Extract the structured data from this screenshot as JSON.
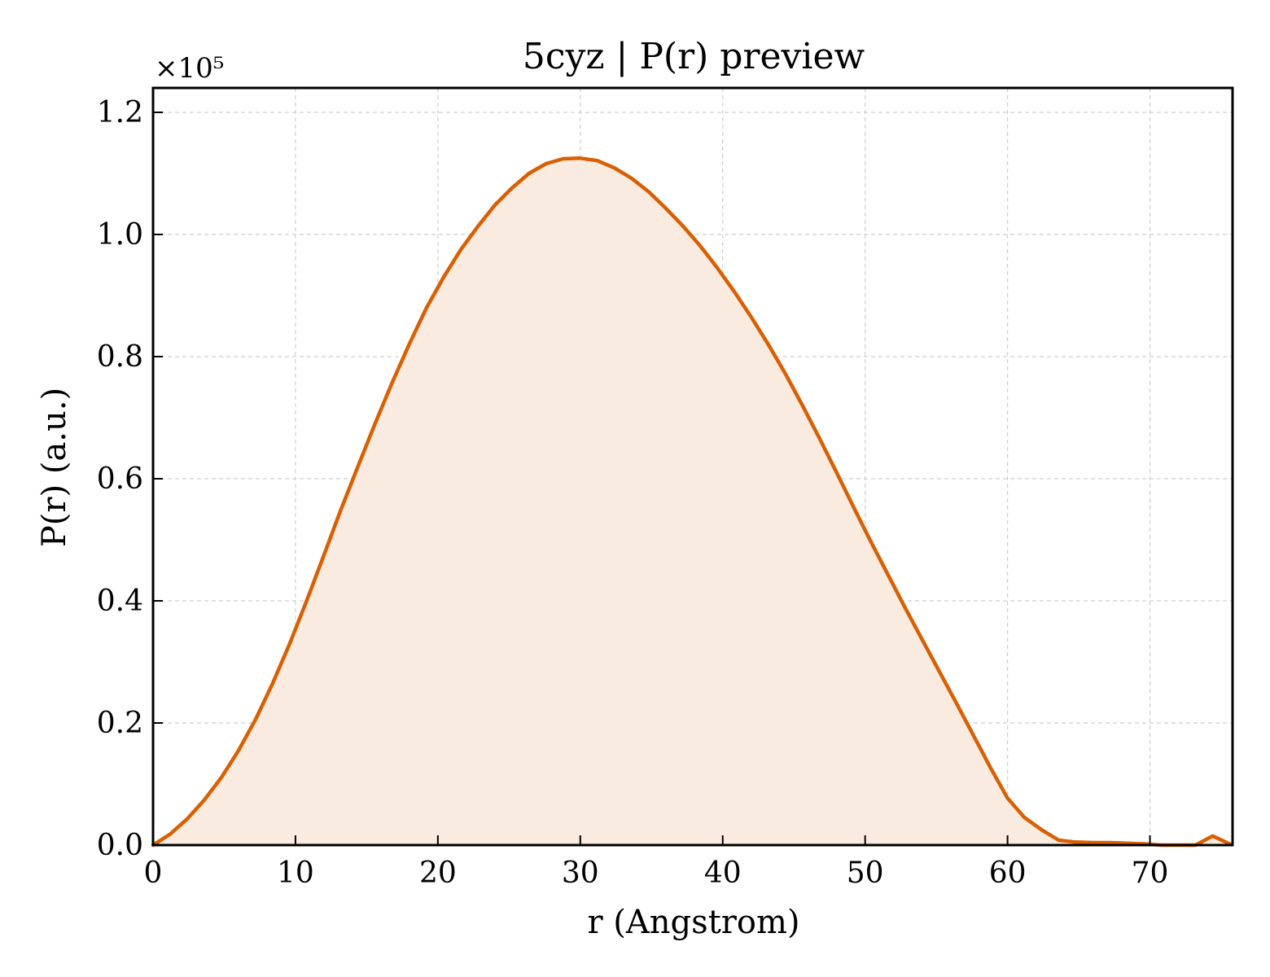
{
  "chart_data": {
    "type": "area",
    "title": "5cyz | P(r) preview",
    "xlabel": "r (Angstrom)",
    "ylabel": "P(r) (a.u.)",
    "y_multiplier_label": "×10⁵",
    "xlim": [
      0,
      75.8
    ],
    "ylim": [
      0,
      1.24
    ],
    "xticks": [
      0,
      10,
      20,
      30,
      40,
      50,
      60,
      70
    ],
    "yticks": [
      0.0,
      0.2,
      0.4,
      0.6,
      0.8,
      1.0,
      1.2
    ],
    "ytick_labels": [
      "0.0",
      "0.2",
      "0.4",
      "0.6",
      "0.8",
      "1.0",
      "1.2"
    ],
    "grid": true,
    "line_color": "#d95f02",
    "fill_color": "#f9ebdf",
    "series": [
      {
        "x": [
          0,
          1.2,
          2.4,
          3.6,
          4.8,
          6.0,
          7.2,
          8.4,
          9.6,
          10.8,
          12.0,
          13.2,
          14.4,
          15.6,
          16.8,
          18.0,
          19.2,
          20.4,
          21.6,
          22.8,
          24.0,
          25.2,
          26.4,
          27.6,
          28.8,
          30.0,
          31.2,
          32.4,
          33.6,
          34.8,
          36.0,
          37.2,
          38.4,
          39.6,
          40.8,
          42.0,
          43.2,
          44.4,
          45.6,
          46.8,
          48.0,
          49.2,
          50.4,
          51.6,
          52.8,
          54.0,
          55.2,
          56.4,
          57.6,
          58.8,
          60.0,
          61.2,
          62.4,
          63.6,
          64.8,
          66.0,
          67.2,
          68.4,
          69.6,
          70.8,
          72.0,
          73.2,
          74.4,
          75.6
        ],
        "y": [
          0.0,
          0.018,
          0.043,
          0.074,
          0.111,
          0.155,
          0.206,
          0.265,
          0.33,
          0.401,
          0.475,
          0.55,
          0.621,
          0.691,
          0.758,
          0.821,
          0.88,
          0.93,
          0.975,
          1.013,
          1.048,
          1.076,
          1.1,
          1.116,
          1.124,
          1.125,
          1.121,
          1.109,
          1.092,
          1.07,
          1.043,
          1.014,
          0.982,
          0.946,
          0.907,
          0.865,
          0.82,
          0.772,
          0.72,
          0.666,
          0.61,
          0.553,
          0.497,
          0.443,
          0.389,
          0.337,
          0.285,
          0.233,
          0.18,
          0.127,
          0.077,
          0.045,
          0.025,
          0.008,
          0.005,
          0.004,
          0.004,
          0.003,
          0.002,
          0.0,
          0.0,
          0.0,
          0.015,
          0.002
        ]
      }
    ]
  }
}
